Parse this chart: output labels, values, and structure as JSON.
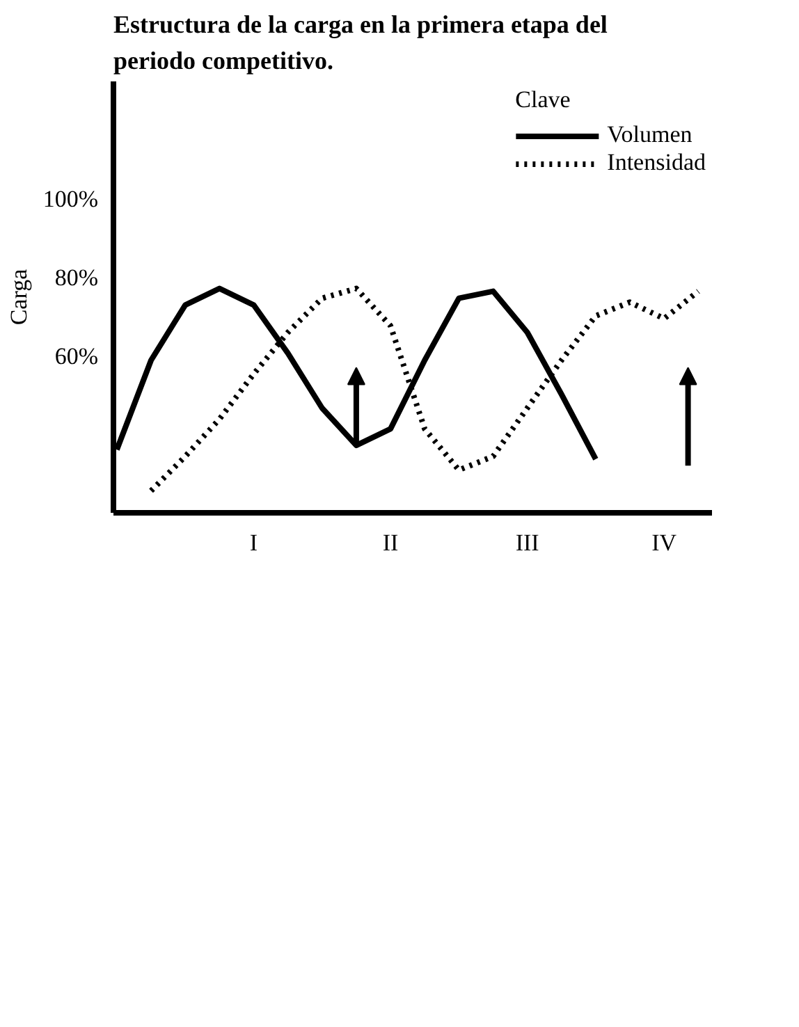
{
  "chart_data": {
    "type": "line",
    "title": "Estructura de la carga en la primera etapa del periodo competitivo.",
    "ylabel": "Carga",
    "legend_title": "Clave",
    "legend": "top right",
    "grid": false,
    "marker": "none",
    "categories": [
      null,
      null,
      null,
      null,
      "I",
      null,
      null,
      null,
      "II",
      null,
      null,
      null,
      "III",
      null,
      null,
      null,
      "IV",
      null
    ],
    "ylim": [
      20,
      130
    ],
    "yticks": [
      {
        "value": 60,
        "label": "60%"
      },
      {
        "value": 80,
        "label": "80%"
      },
      {
        "value": 100,
        "label": "100%"
      }
    ],
    "series": [
      {
        "name": "Volumen",
        "color": "#000000",
        "line_style": "solid",
        "values": [
          36.1,
          58.9,
          73,
          77.2,
          73,
          60.7,
          46.7,
          37.2,
          41.4,
          58.9,
          74.7,
          76.5,
          66,
          50.2,
          33.7,
          null,
          null,
          null
        ]
      },
      {
        "name": "Intensidad",
        "color": "#000000",
        "line_style": "dotted",
        "values": [
          null,
          25.6,
          34.4,
          43.9,
          55.4,
          66,
          74.7,
          77.2,
          67.7,
          41.4,
          30.9,
          34.4,
          46.7,
          58.9,
          70.2,
          73.7,
          69.5,
          76.5
        ]
      }
    ]
  }
}
